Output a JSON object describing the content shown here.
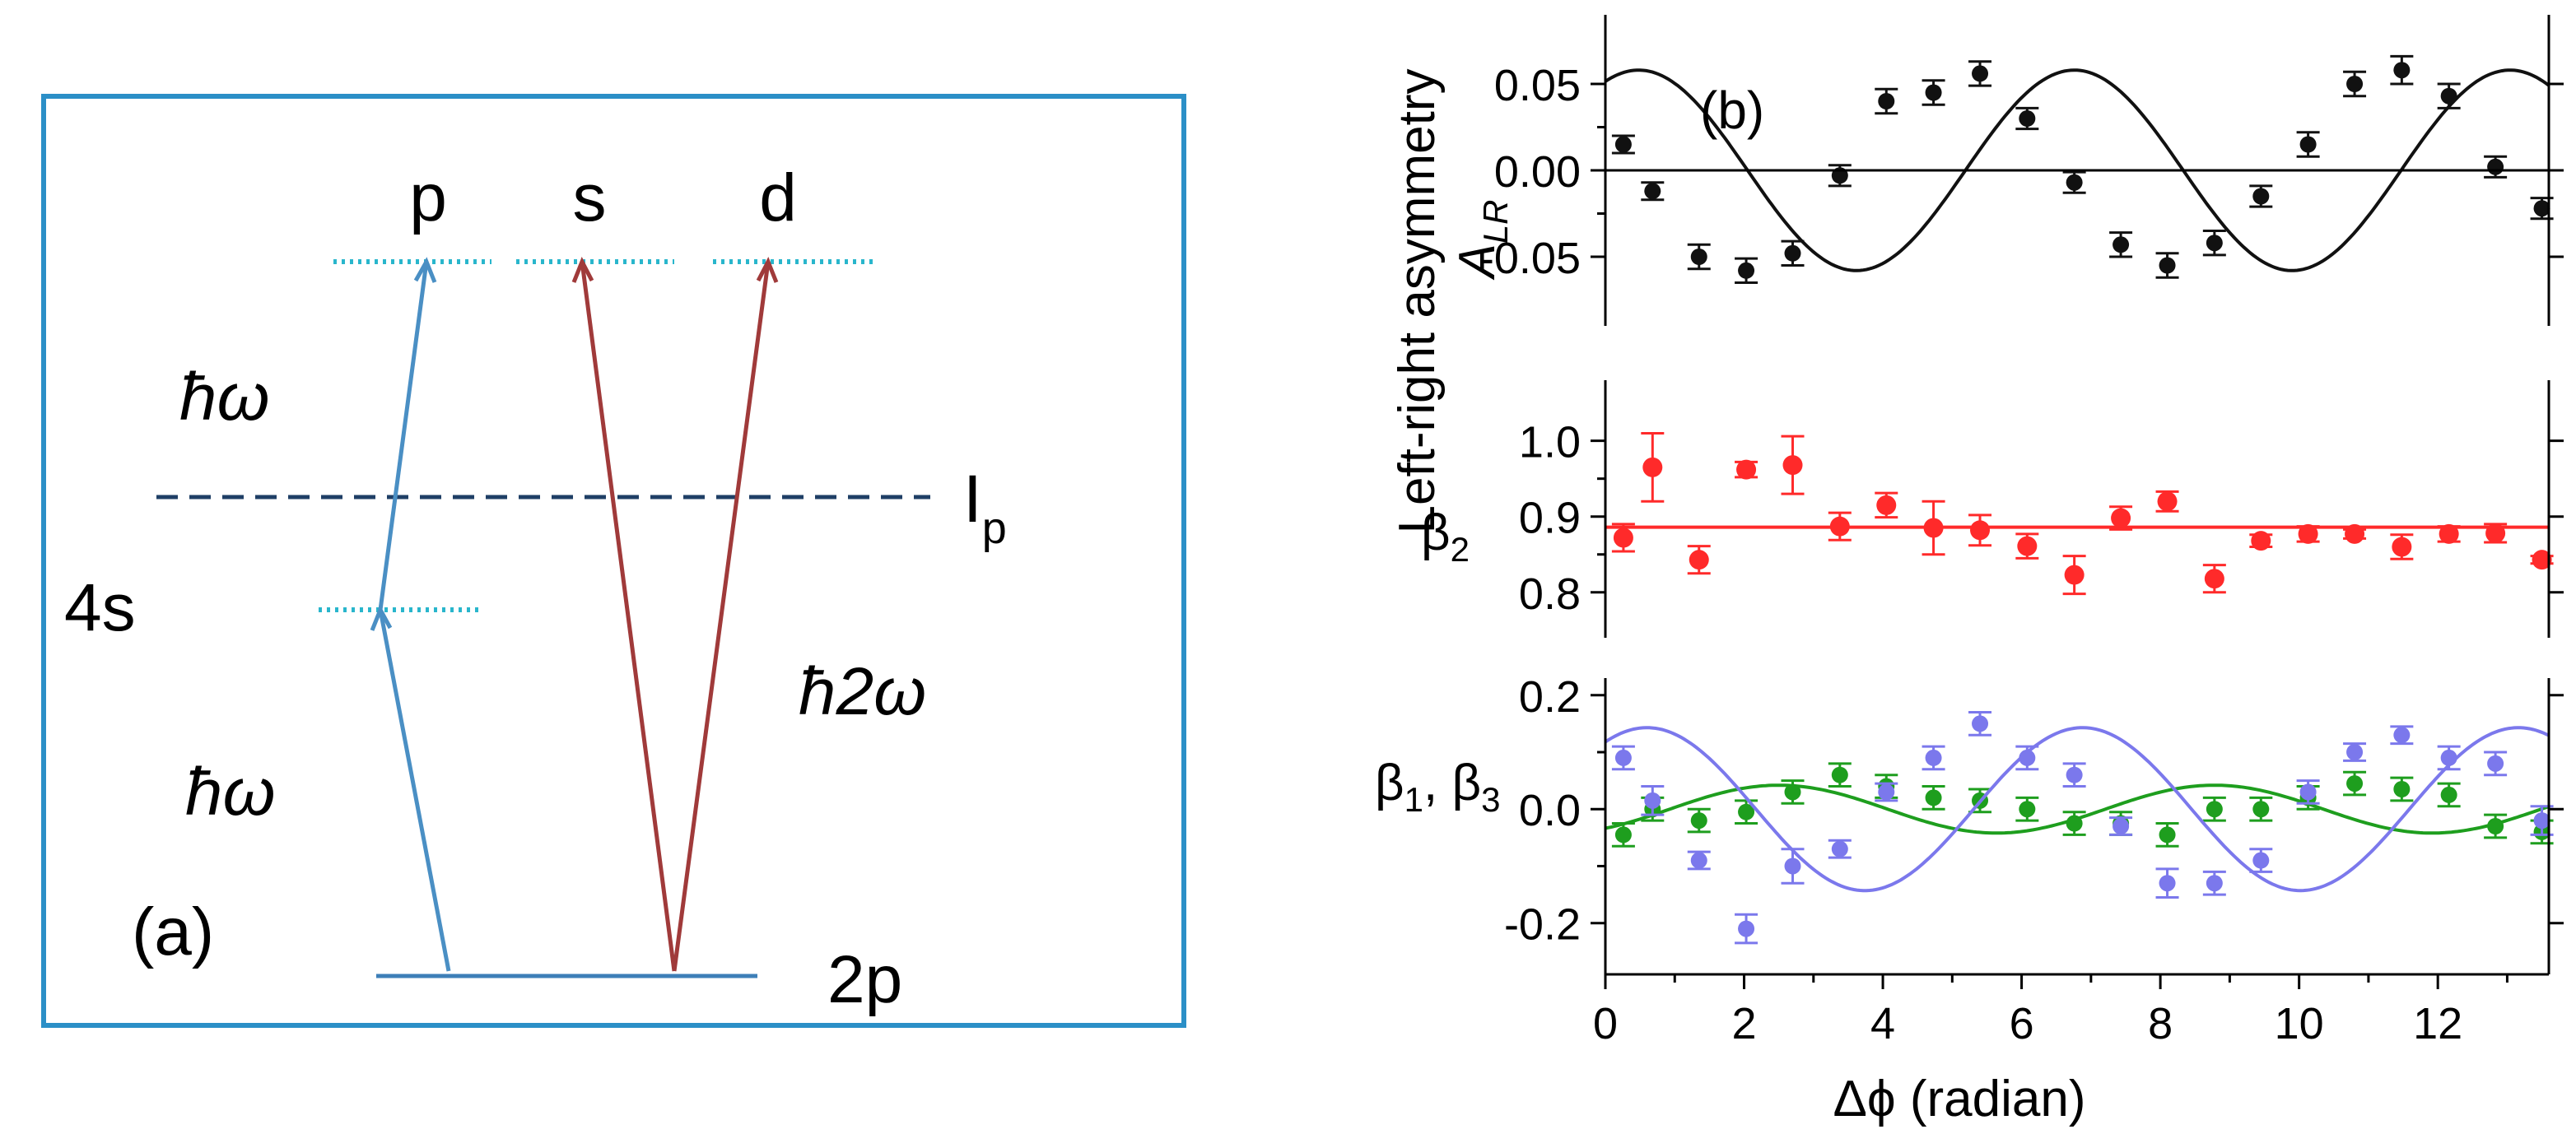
{
  "diagram": {
    "panel_label": "(a)",
    "level_p": "p",
    "level_s": "s",
    "level_d": "d",
    "level_4s": "4s",
    "level_2p": "2p",
    "ip_main": "I",
    "ip_sub": "p",
    "hw_upper": "ħω",
    "hw_lower": "ħω",
    "h2w": "ħ2ω",
    "colors": {
      "frame": "#2b8fc7",
      "blue_arrow": "#4a8fc4",
      "red_arrow": "#a03a3a",
      "dotted": "#29b6cc",
      "dashed": "#1f3f66"
    }
  },
  "chart_data": [
    {
      "type": "scatter",
      "panel_label": "(b)",
      "ylabel_line1": "Left-right asymmetry",
      "ylabel_sym": "A",
      "ylabel_sub": "LR",
      "xlim": [
        0,
        13.6
      ],
      "ylim": [
        -0.09,
        0.09
      ],
      "yticks": [
        0.05,
        0.0,
        -0.05
      ],
      "ytick_labels": [
        "0.05",
        "0.00",
        "-0.05"
      ],
      "zero_line": true,
      "series": [
        {
          "color": "#111111",
          "x": [
            0.26,
            0.68,
            1.35,
            2.03,
            2.7,
            3.38,
            4.05,
            4.73,
            5.4,
            6.08,
            6.76,
            7.43,
            8.1,
            8.78,
            9.45,
            10.13,
            10.8,
            11.48,
            12.16,
            12.83,
            13.5
          ],
          "y": [
            0.015,
            -0.012,
            -0.05,
            -0.058,
            -0.048,
            -0.003,
            0.04,
            0.045,
            0.056,
            0.03,
            -0.007,
            -0.043,
            -0.055,
            -0.042,
            -0.015,
            0.015,
            0.05,
            0.058,
            0.043,
            0.002,
            -0.022
          ],
          "err": [
            0.005,
            0.005,
            0.007,
            0.007,
            0.007,
            0.006,
            0.007,
            0.007,
            0.007,
            0.006,
            0.006,
            0.007,
            0.007,
            0.007,
            0.006,
            0.007,
            0.007,
            0.008,
            0.007,
            0.006,
            0.006
          ],
          "fit": {
            "amplitude": 0.058,
            "period": 6.28,
            "phase": -0.48,
            "offset": 0.0
          }
        }
      ]
    },
    {
      "type": "scatter",
      "ylabel": "β",
      "ylabel_sub": "2",
      "xlim": [
        0,
        13.6
      ],
      "ylim": [
        0.74,
        1.08
      ],
      "yticks": [
        1.0,
        0.9,
        0.8
      ],
      "ytick_labels": [
        "1.0",
        "0.9",
        "0.8"
      ],
      "series": [
        {
          "color": "#ff2a2a",
          "x": [
            0.26,
            0.68,
            1.35,
            2.03,
            2.7,
            3.38,
            4.05,
            4.73,
            5.4,
            6.08,
            6.76,
            7.43,
            8.1,
            8.78,
            9.45,
            10.13,
            10.8,
            11.48,
            12.16,
            12.83,
            13.5
          ],
          "y": [
            0.872,
            0.965,
            0.843,
            0.962,
            0.968,
            0.887,
            0.915,
            0.885,
            0.882,
            0.861,
            0.823,
            0.898,
            0.92,
            0.818,
            0.868,
            0.877,
            0.877,
            0.86,
            0.877,
            0.878,
            0.843
          ],
          "err": [
            0.018,
            0.045,
            0.018,
            0.01,
            0.038,
            0.018,
            0.016,
            0.035,
            0.02,
            0.016,
            0.025,
            0.015,
            0.013,
            0.018,
            0.008,
            0.01,
            0.006,
            0.016,
            0.01,
            0.012,
            0.005
          ],
          "fit": {
            "constant": 0.886
          }
        }
      ]
    },
    {
      "type": "scatter",
      "ylabel": "β",
      "ylabel_sub1": "1",
      "ylabel_sep": ", ",
      "ylabel_sub3": "3",
      "xlabel": "Δϕ (radian)",
      "xlim": [
        0,
        13.6
      ],
      "xticks": [
        0,
        2,
        4,
        6,
        8,
        10,
        12
      ],
      "ylim": [
        -0.29,
        0.23
      ],
      "yticks": [
        0.2,
        0.0,
        -0.2
      ],
      "ytick_labels": [
        "0.2",
        "0.0",
        "-0.2"
      ],
      "series": [
        {
          "color": "#1e9e1e",
          "x": [
            0.26,
            0.68,
            1.35,
            2.03,
            2.7,
            3.38,
            4.05,
            4.73,
            5.4,
            6.08,
            6.76,
            7.43,
            8.1,
            8.78,
            9.45,
            10.13,
            10.8,
            11.48,
            12.16,
            12.83,
            13.5
          ],
          "y": [
            -0.045,
            0.0,
            -0.02,
            -0.005,
            0.03,
            0.06,
            0.04,
            0.02,
            0.015,
            0.0,
            -0.025,
            -0.025,
            -0.045,
            0.0,
            0.0,
            0.02,
            0.045,
            0.035,
            0.025,
            -0.03,
            -0.04
          ],
          "err": [
            0.02,
            0.02,
            0.02,
            0.02,
            0.02,
            0.02,
            0.02,
            0.02,
            0.02,
            0.02,
            0.02,
            0.02,
            0.02,
            0.02,
            0.02,
            0.02,
            0.02,
            0.02,
            0.02,
            0.02,
            0.02
          ],
          "fit": {
            "amplitude": 0.042,
            "period": 6.28,
            "phase": -2.5,
            "offset": 0.0
          }
        },
        {
          "color": "#7b78ec",
          "x": [
            0.26,
            0.68,
            1.35,
            2.03,
            2.7,
            3.38,
            4.05,
            4.73,
            5.4,
            6.08,
            6.76,
            7.43,
            8.1,
            8.78,
            9.45,
            10.13,
            10.8,
            11.48,
            12.16,
            12.83,
            13.5
          ],
          "y": [
            0.09,
            0.015,
            -0.09,
            -0.21,
            -0.1,
            -0.07,
            0.03,
            0.09,
            0.15,
            0.09,
            0.06,
            -0.03,
            -0.13,
            -0.13,
            -0.09,
            0.03,
            0.1,
            0.13,
            0.09,
            0.08,
            -0.02
          ],
          "err": [
            0.02,
            0.025,
            0.015,
            0.025,
            0.03,
            0.015,
            0.015,
            0.02,
            0.02,
            0.02,
            0.02,
            0.015,
            0.025,
            0.02,
            0.02,
            0.02,
            0.015,
            0.015,
            0.02,
            0.02,
            0.025
          ],
          "fit": {
            "amplitude": 0.143,
            "period": 6.28,
            "phase": -0.6,
            "offset": 0.0
          }
        }
      ]
    }
  ]
}
